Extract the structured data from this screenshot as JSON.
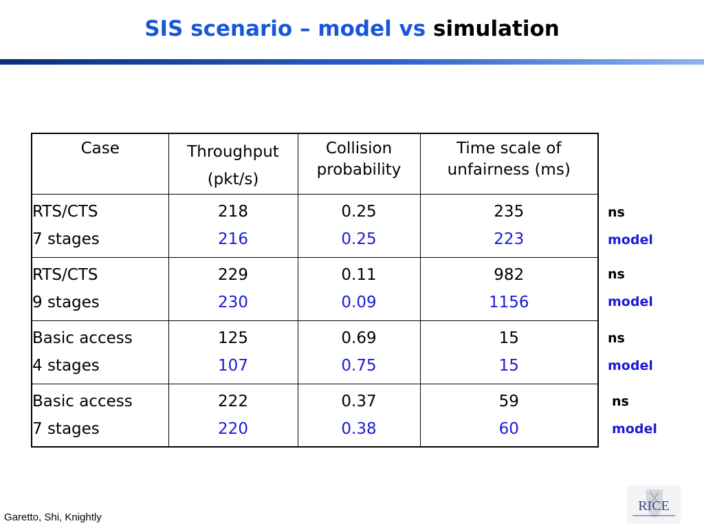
{
  "title": {
    "part_blue": "SIS scenario – model vs",
    "part_black": "simulation"
  },
  "table": {
    "headers": [
      {
        "line1": "Case",
        "line2": ""
      },
      {
        "line1": "Throughput",
        "line2": "(pkt/s)"
      },
      {
        "line1": "Collision",
        "line2": "probability"
      },
      {
        "line1": "Time scale of",
        "line2": "unfairness (ms)"
      }
    ],
    "rows": [
      {
        "case1": "RTS/CTS",
        "case2": "7 stages",
        "throughput": {
          "ns": "218",
          "model": "216"
        },
        "collision": {
          "ns": "0.25",
          "model": "0.25"
        },
        "timescale": {
          "ns": "235",
          "model": "223"
        }
      },
      {
        "case1": "RTS/CTS",
        "case2": "9 stages",
        "throughput": {
          "ns": "229",
          "model": "230"
        },
        "collision": {
          "ns": "0.11",
          "model": "0.09"
        },
        "timescale": {
          "ns": "982",
          "model": "1156"
        }
      },
      {
        "case1": "Basic access",
        "case2": "4 stages",
        "throughput": {
          "ns": "125",
          "model": "107"
        },
        "collision": {
          "ns": "0.69",
          "model": "0.75"
        },
        "timescale": {
          "ns": "15",
          "model": "15"
        }
      },
      {
        "case1": "Basic access",
        "case2": "7 stages",
        "throughput": {
          "ns": "222",
          "model": "220"
        },
        "collision": {
          "ns": "0.37",
          "model": "0.38"
        },
        "timescale": {
          "ns": "59",
          "model": "60"
        }
      }
    ]
  },
  "side_labels": [
    {
      "ns": "ns",
      "model": "model"
    },
    {
      "ns": "ns",
      "model": "model"
    },
    {
      "ns": "ns",
      "model": "model"
    },
    {
      "ns": "ns",
      "model": "model"
    }
  ],
  "footer": "Garetto, Shi, Knightly",
  "logo": {
    "text": "RICE",
    "icon": "rice-university-shield-icon"
  },
  "colors": {
    "title_blue": "#1a56d8",
    "model_blue": "#1a1ad6",
    "rule_dark": "#0b2f7a",
    "rule_light": "#8fb2ef"
  }
}
